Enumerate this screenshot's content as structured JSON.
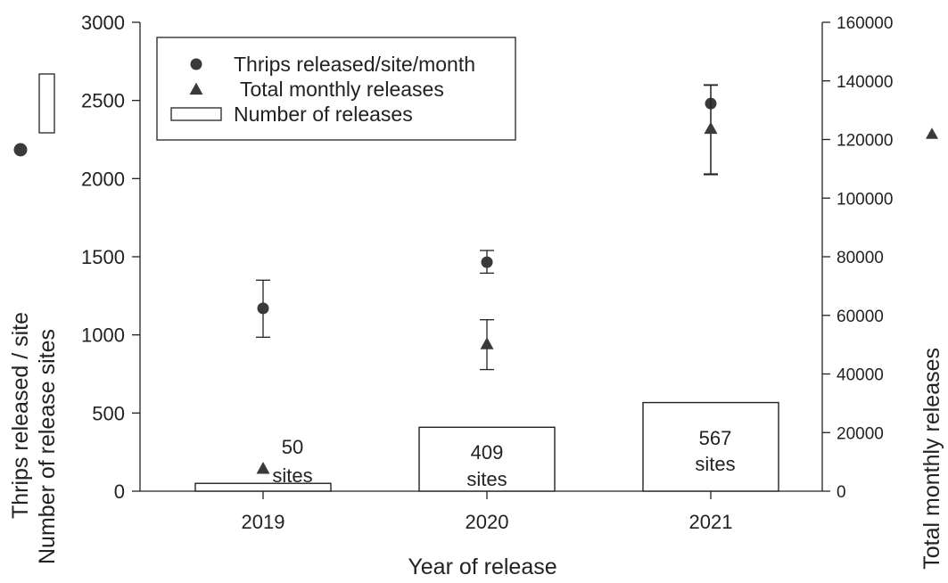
{
  "chart_data": {
    "type": "bar",
    "xlabel": "Year of release",
    "ylabel_left_line1": "Thrips released / site",
    "ylabel_left_line2": "Number of release sites",
    "ylabel_right": "Total monthly releases",
    "categories": [
      "2019",
      "2020",
      "2021"
    ],
    "left_axis": {
      "ylim": [
        0,
        3000
      ],
      "ticks": [
        "0",
        "500",
        "1000",
        "1500",
        "2000",
        "2500",
        "3000"
      ]
    },
    "right_axis": {
      "ylim": [
        0,
        160000
      ],
      "ticks": [
        "0",
        "20000",
        "40000",
        "60000",
        "80000",
        "100000",
        "120000",
        "140000",
        "160000"
      ]
    },
    "series": [
      {
        "name": "Number of releases",
        "kind": "bar",
        "axis": "left",
        "values": [
          50,
          409,
          567
        ],
        "labels": [
          [
            "50",
            "sites"
          ],
          [
            "409",
            "sites"
          ],
          [
            "567",
            "sites"
          ]
        ]
      },
      {
        "name": "Thrips released/site/month",
        "kind": "circle",
        "axis": "left",
        "values": [
          1170,
          1465,
          2480
        ],
        "err_low": [
          985,
          1395,
          2030
        ],
        "err_high": [
          1350,
          1540,
          2600
        ]
      },
      {
        "name": "Total monthly releases",
        "kind": "triangle",
        "axis": "right",
        "values": [
          7500,
          50000,
          123500
        ],
        "err_low": [
          null,
          41500,
          108000
        ],
        "err_high": [
          null,
          58500,
          138500
        ]
      }
    ],
    "legend": [
      "Thrips released/site/month",
      "Total monthly releases",
      "Number of releases"
    ],
    "legend_position": "top-left",
    "grid": false,
    "colors": {
      "marker": "#3a3a3a",
      "axis": "#222222",
      "bar_fill": "#ffffff"
    }
  }
}
